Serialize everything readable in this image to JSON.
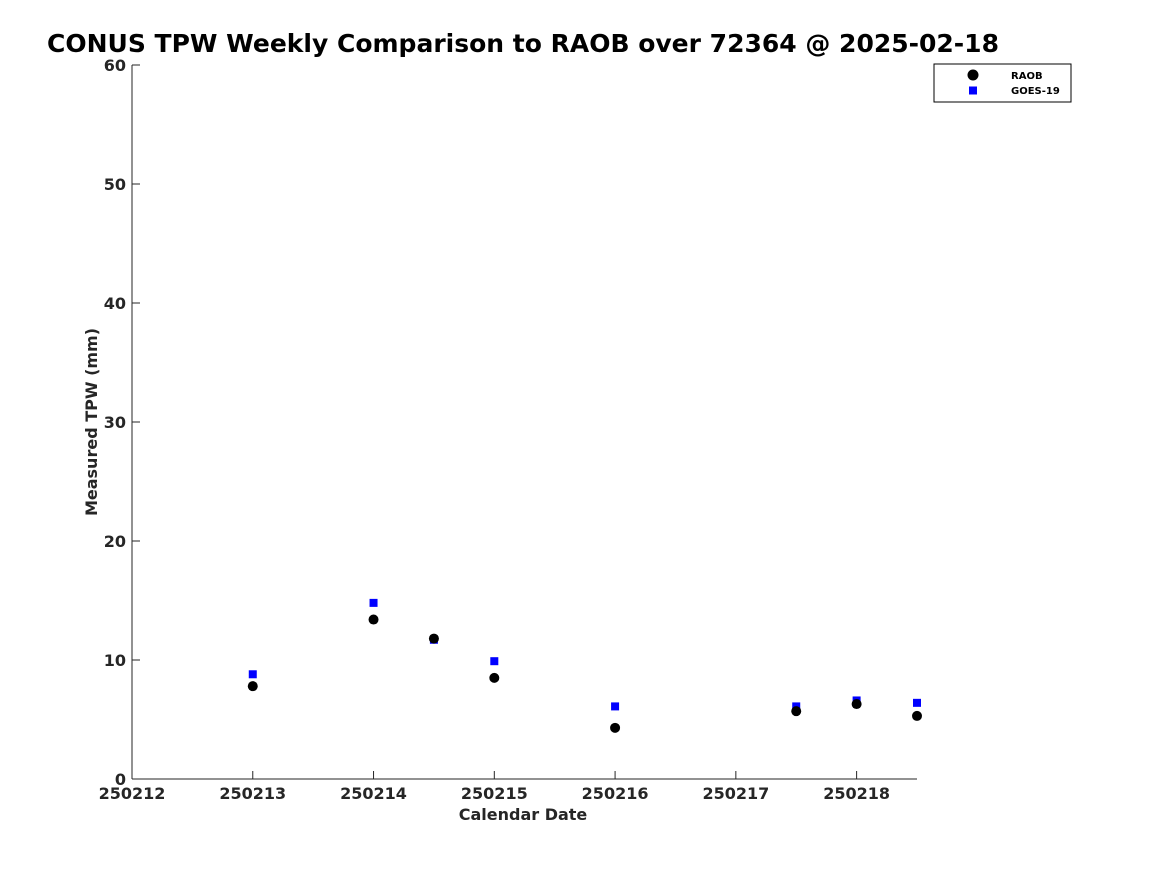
{
  "chart_data": {
    "type": "scatter",
    "title": "CONUS TPW Weekly Comparison to RAOB over 72364 @ 2025-02-18",
    "xlabel": "Calendar Date",
    "ylabel": "Measured TPW (mm)",
    "xlim": [
      250212,
      250218.5
    ],
    "ylim": [
      0,
      60
    ],
    "x_ticks": [
      250212,
      250213,
      250214,
      250215,
      250216,
      250217,
      250218
    ],
    "x_tick_labels": [
      "250212",
      "250213",
      "250214",
      "250215",
      "250216",
      "250217",
      "250218"
    ],
    "y_ticks": [
      0,
      10,
      20,
      30,
      40,
      50,
      60
    ],
    "y_tick_labels": [
      "0",
      "10",
      "20",
      "30",
      "40",
      "50",
      "60"
    ],
    "grid": false,
    "legend_position": "top-right",
    "series": [
      {
        "name": "RAOB",
        "marker": "circle",
        "color": "#000000",
        "x": [
          250213,
          250214,
          250214.5,
          250215,
          250216,
          250217.5,
          250218,
          250218.5
        ],
        "y": [
          7.8,
          13.4,
          11.8,
          8.5,
          4.3,
          5.7,
          6.3,
          5.3
        ]
      },
      {
        "name": "GOES-19",
        "marker": "square",
        "color": "#0000ff",
        "x": [
          250213,
          250214,
          250214.5,
          250215,
          250216,
          250217.5,
          250218,
          250218.5
        ],
        "y": [
          8.8,
          14.8,
          11.7,
          9.9,
          6.1,
          6.1,
          6.6,
          6.4
        ]
      }
    ]
  }
}
